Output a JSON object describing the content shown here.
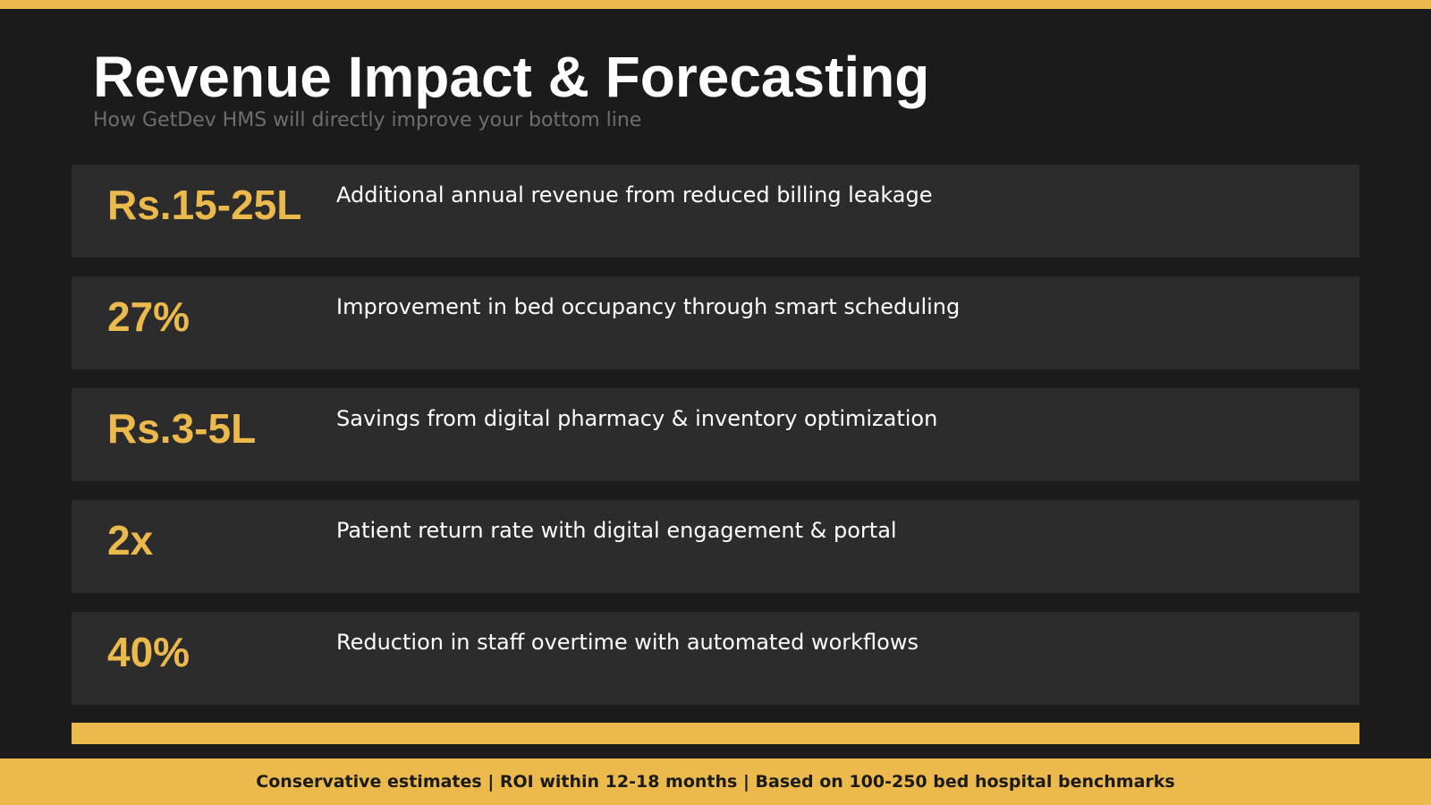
{
  "slide": {
    "title": "Revenue Impact & Forecasting",
    "subtitle": "How GetDev HMS will directly improve your bottom line"
  },
  "metrics": [
    {
      "value": "Rs.15-25L",
      "description": "Additional annual revenue from reduced billing leakage"
    },
    {
      "value": "27%",
      "description": "Improvement in bed occupancy through smart scheduling"
    },
    {
      "value": "Rs.3-5L",
      "description": "Savings from digital pharmacy & inventory optimization"
    },
    {
      "value": "2x",
      "description": "Patient return rate with digital engagement & portal"
    },
    {
      "value": "40%",
      "description": "Reduction in staff overtime with automated workflows"
    }
  ],
  "footer": {
    "text": "Conservative estimates | ROI within 12-18 months | Based on 100-250 bed hospital benchmarks"
  },
  "colors": {
    "background": "#1b1b1b",
    "card": "#2c2c2c",
    "accent": "#ebb94c",
    "title": "#ffffff",
    "subtitle": "#6e6e6e"
  }
}
